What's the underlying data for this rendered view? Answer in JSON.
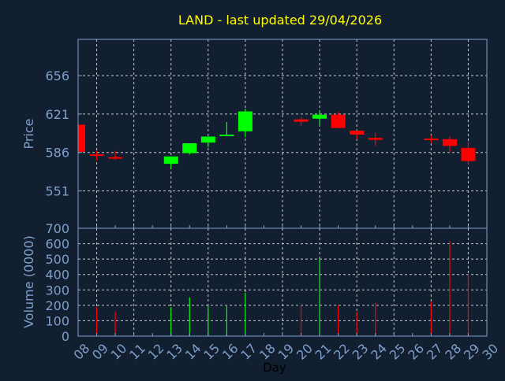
{
  "chart_data": [
    {
      "type": "candlestick",
      "title": "LAND - last updated 29/04/2026",
      "xlabel": "Day",
      "ylabel": "Price",
      "ylim": [
        517,
        689
      ],
      "yticks": [
        551,
        586,
        621,
        656
      ],
      "grid": true,
      "x_tick_labels": [
        "08",
        "09",
        "10",
        "11",
        "12",
        "13",
        "14",
        "15",
        "16",
        "17",
        "18",
        "19",
        "20",
        "21",
        "22",
        "23",
        "24",
        "25",
        "26",
        "27",
        "28",
        "29",
        "30"
      ],
      "candles": [
        {
          "day": 8,
          "open": 611.3,
          "high": 611.3,
          "low": 586.6,
          "close": 586.6
        },
        {
          "day": 9,
          "open": 584.3,
          "high": 587.6,
          "low": 579.0,
          "close": 583.5
        },
        {
          "day": 10,
          "open": 581.8,
          "high": 587.6,
          "low": 579.4,
          "close": 580.6
        },
        {
          "day": 13,
          "open": 575.7,
          "high": 582.4,
          "low": 572.0,
          "close": 582.4
        },
        {
          "day": 14,
          "open": 585.4,
          "high": 594.4,
          "low": 584.2,
          "close": 594.4
        },
        {
          "day": 15,
          "open": 595.0,
          "high": 600.5,
          "low": 591.0,
          "close": 600.5
        },
        {
          "day": 16,
          "open": 601.3,
          "high": 613.8,
          "low": 601.0,
          "close": 602.3
        },
        {
          "day": 17,
          "open": 605.3,
          "high": 625.8,
          "low": 600.0,
          "close": 623.4
        },
        {
          "day": 20,
          "open": 616.2,
          "high": 618.6,
          "low": 610.0,
          "close": 614.0
        },
        {
          "day": 21,
          "open": 616.8,
          "high": 624.0,
          "low": 611.0,
          "close": 620.4
        },
        {
          "day": 22,
          "open": 620.4,
          "high": 622.8,
          "low": 608.3,
          "close": 608.3
        },
        {
          "day": 23,
          "open": 605.9,
          "high": 605.9,
          "low": 598.0,
          "close": 602.3
        },
        {
          "day": 24,
          "open": 599.3,
          "high": 604.0,
          "low": 592.0,
          "close": 597.5
        },
        {
          "day": 27,
          "open": 598.7,
          "high": 601.7,
          "low": 595.0,
          "close": 597.5
        },
        {
          "day": 28,
          "open": 598.1,
          "high": 600.5,
          "low": 586.0,
          "close": 592.0
        },
        {
          "day": 29,
          "open": 590.2,
          "high": 595.6,
          "low": 575.1,
          "close": 578.2
        }
      ],
      "colors": {
        "up": "#00ff00",
        "down": "#ff0000"
      }
    },
    {
      "type": "bar",
      "ylabel": "Volume (0000)",
      "xlabel": "Day",
      "ylim": [
        0,
        700
      ],
      "yticks": [
        0,
        100,
        200,
        300,
        400,
        500,
        600,
        700
      ],
      "grid": true,
      "volumes": [
        {
          "day": 9,
          "value": 188,
          "direction": "down"
        },
        {
          "day": 10,
          "value": 162,
          "direction": "down"
        },
        {
          "day": 13,
          "value": 188,
          "direction": "up"
        },
        {
          "day": 14,
          "value": 251,
          "direction": "up"
        },
        {
          "day": 15,
          "value": 193,
          "direction": "up"
        },
        {
          "day": 16,
          "value": 195,
          "direction": "up"
        },
        {
          "day": 17,
          "value": 282,
          "direction": "up"
        },
        {
          "day": 20,
          "value": 200,
          "direction": "down"
        },
        {
          "day": 21,
          "value": 502,
          "direction": "up"
        },
        {
          "day": 22,
          "value": 200,
          "direction": "down"
        },
        {
          "day": 23,
          "value": 157,
          "direction": "down"
        },
        {
          "day": 24,
          "value": 218,
          "direction": "down"
        },
        {
          "day": 27,
          "value": 223,
          "direction": "down"
        },
        {
          "day": 28,
          "value": 619,
          "direction": "down"
        },
        {
          "day": 29,
          "value": 401,
          "direction": "down"
        }
      ]
    }
  ],
  "colors": {
    "background": "#111f30",
    "axis": "#7f9fcc",
    "title": "#ffff00",
    "grid": "#c8c8c8"
  }
}
